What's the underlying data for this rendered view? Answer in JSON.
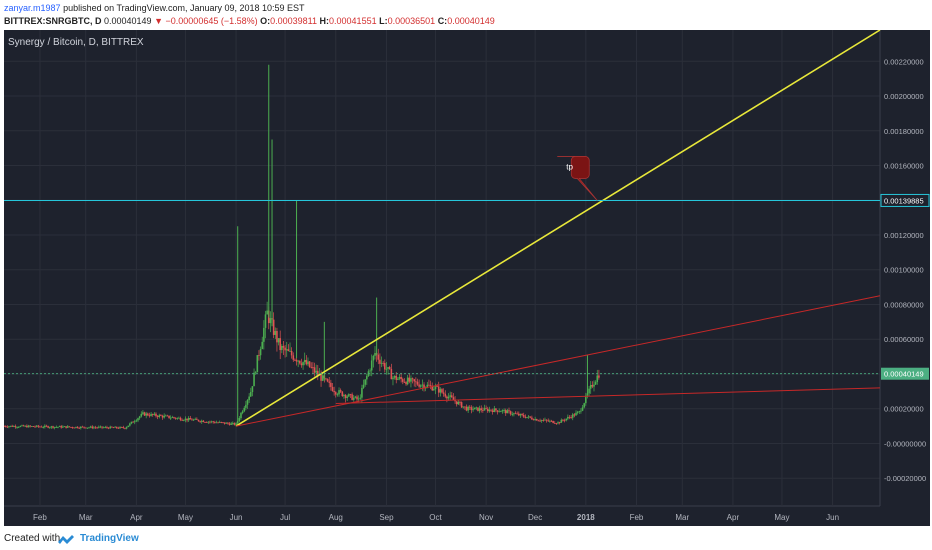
{
  "header": {
    "author": "zanyar.m1987",
    "published_text": "published on TradingView.com, January 09, 2018 10:59 EST",
    "symbol": "BITTREX:SNRGBTC, D",
    "last_price": "0.00040149",
    "change": "−0.00000645 (−1.58%)",
    "open_label": "O:",
    "open": "0.00039811",
    "high_label": "H:",
    "high": "0.00041551",
    "low_label": "L:",
    "low": "0.00036501",
    "close_label": "C:",
    "close": "0.00040149"
  },
  "chart_title": "Synergy / Bitcoin, D, BITTREX",
  "footer": {
    "created": "Created with",
    "brand": "TradingView"
  },
  "colors": {
    "background": "#1e222d",
    "grid": "#2b2f3a",
    "axis_text": "#b2b5be",
    "up": "#4caf50",
    "down": "#e05252",
    "yellow_trendline": "#e8e83a",
    "red_trendline": "#c62828",
    "horizontal_level": "#26c6da",
    "price_label": "#4caf82",
    "callout": "#7b1414"
  },
  "chart_data": {
    "type": "candlestick",
    "series_name": "Synergy / Bitcoin",
    "y_tick_labels": [
      "0.00220000",
      "0.00200000",
      "0.00180000",
      "0.00160000",
      "0.00140000",
      "0.00120000",
      "0.00100000",
      "0.00080000",
      "0.00060000",
      "0.00040000",
      "0.00020000",
      "-0.00000000",
      "-0.00020000"
    ],
    "y_tick_values": [
      0.0022,
      0.002,
      0.0018,
      0.0016,
      0.0014,
      0.0012,
      0.001,
      0.0008,
      0.0006,
      0.0004,
      0.0002,
      0.0,
      -0.0002
    ],
    "ylim": [
      -0.00036,
      0.00238
    ],
    "x_labels": [
      "Feb",
      "Mar",
      "Apr",
      "May",
      "Jun",
      "Jul",
      "Aug",
      "Sep",
      "Oct",
      "Nov",
      "Dec",
      "2018",
      "Feb",
      "Mar",
      "Apr",
      "May",
      "Jun"
    ],
    "x_label_dates": [
      "2017-02-01",
      "2017-03-01",
      "2017-04-01",
      "2017-05-01",
      "2017-06-01",
      "2017-07-01",
      "2017-08-01",
      "2017-09-01",
      "2017-10-01",
      "2017-11-01",
      "2017-12-01",
      "2018-01-01",
      "2018-02-01",
      "2018-03-01",
      "2018-04-01",
      "2018-05-01",
      "2018-06-01"
    ],
    "xlim": [
      "2017-01-10",
      "2018-06-30"
    ],
    "price_path": [
      [
        "2017-01-10",
        0.0001
      ],
      [
        "2017-03-25",
        9e-05
      ],
      [
        "2017-04-05",
        0.00017
      ],
      [
        "2017-05-01",
        0.00014
      ],
      [
        "2017-06-01",
        0.00011
      ],
      [
        "2017-06-10",
        0.0003
      ],
      [
        "2017-06-20",
        0.00075
      ],
      [
        "2017-06-28",
        0.00055
      ],
      [
        "2017-07-15",
        0.00045
      ],
      [
        "2017-08-01",
        0.0003
      ],
      [
        "2017-08-15",
        0.00025
      ],
      [
        "2017-08-25",
        0.00052
      ],
      [
        "2017-09-05",
        0.00038
      ],
      [
        "2017-10-01",
        0.00032
      ],
      [
        "2017-10-20",
        0.0002
      ],
      [
        "2017-11-10",
        0.00019
      ],
      [
        "2017-12-01",
        0.00014
      ],
      [
        "2017-12-15",
        0.00012
      ],
      [
        "2017-12-28",
        0.00018
      ],
      [
        "2018-01-05",
        0.00034
      ],
      [
        "2018-01-09",
        0.00040149
      ]
    ],
    "spike_highs": [
      [
        "2017-06-02",
        0.00125
      ],
      [
        "2017-06-21",
        0.00218
      ],
      [
        "2017-06-23",
        0.00175
      ],
      [
        "2017-07-08",
        0.0014
      ],
      [
        "2017-07-25",
        0.0007
      ],
      [
        "2017-08-26",
        0.00084
      ],
      [
        "2018-01-02",
        0.00051
      ]
    ],
    "horizontal_level": {
      "value": 0.00139885,
      "label": "0.00139885"
    },
    "last_price_label": {
      "value": 0.00040149,
      "label": "0.00040149"
    },
    "trendlines": [
      {
        "color": "yellow",
        "from": [
          "2017-06-01",
          0.0001
        ],
        "to": [
          "2018-06-30",
          0.00238
        ]
      },
      {
        "color": "red",
        "from": [
          "2017-06-01",
          0.0001
        ],
        "to": [
          "2018-06-30",
          0.00085
        ]
      },
      {
        "color": "red",
        "from": [
          "2017-08-01",
          0.00023
        ],
        "to": [
          "2018-06-30",
          0.00032
        ]
      }
    ],
    "annotations": [
      {
        "text": "tp",
        "target": [
          "2018-01-08",
          0.00139885
        ]
      }
    ]
  }
}
